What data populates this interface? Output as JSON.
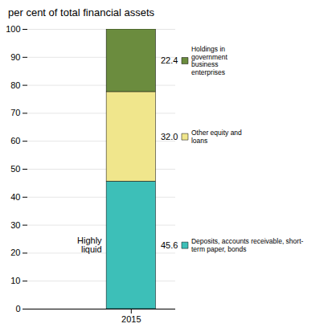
{
  "chart_data": {
    "type": "bar",
    "stacked": true,
    "title": "per cent of total financial assets",
    "categories": [
      "2015"
    ],
    "series": [
      {
        "name": "Deposits, accounts receivable, short-\nterm paper, bonds",
        "color": "#3DBFB8",
        "values": [
          45.6
        ],
        "value_labels": [
          "45.6"
        ]
      },
      {
        "name": "Other equity and\nloans",
        "color": "#F0E68C",
        "values": [
          32.0
        ],
        "value_labels": [
          "32.0"
        ]
      },
      {
        "name": "Holdings in\ngovernment\nbusiness\nenterprises",
        "color": "#6B8C3E",
        "values": [
          22.4
        ],
        "value_labels": [
          "22.4"
        ]
      }
    ],
    "data_labels": true,
    "annotations": [
      {
        "text": "Highly\nliquid"
      }
    ],
    "ylim": [
      0,
      100
    ],
    "yticks": [
      0,
      10,
      20,
      30,
      40,
      50,
      60,
      70,
      80,
      90,
      100
    ],
    "grid": true,
    "legend": "right"
  }
}
